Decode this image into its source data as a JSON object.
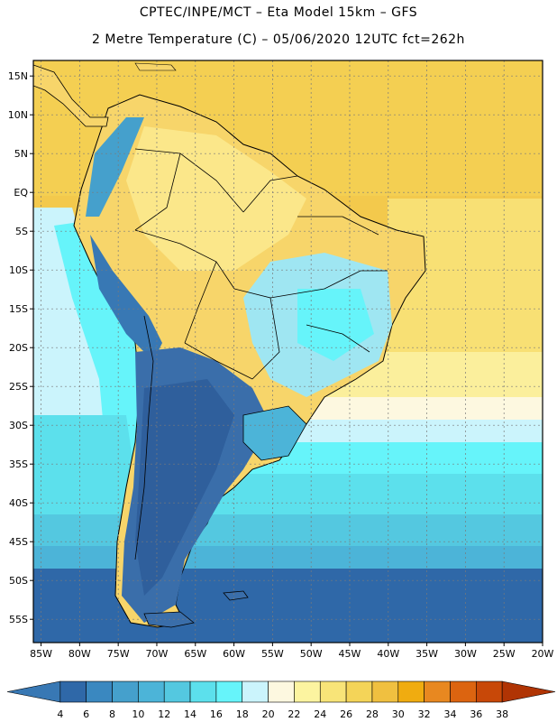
{
  "header": {
    "line1": "CPTEC/INPE/MCT –  Eta Model 15km – GFS",
    "line2": "2 Metre Temperature (C) – 05/06/2020 12UTC fct=262h"
  },
  "map": {
    "lat_ticks": [
      "15N",
      "10N",
      "5N",
      "EQ",
      "5S",
      "10S",
      "15S",
      "20S",
      "25S",
      "30S",
      "35S",
      "40S",
      "45S",
      "50S",
      "55S"
    ],
    "lon_ticks": [
      "85W",
      "80W",
      "75W",
      "70W",
      "65W",
      "60W",
      "55W",
      "50W",
      "45W",
      "40W",
      "35W",
      "30W",
      "25W",
      "20W"
    ],
    "lat_range": [
      17,
      -58
    ],
    "lon_range": [
      -86,
      -20
    ],
    "grid": true,
    "land_color": "#f7d56a",
    "ocean_color": "#f3c94c"
  },
  "colorbar": {
    "labels": [
      "4",
      "6",
      "8",
      "10",
      "12",
      "14",
      "16",
      "18",
      "20",
      "22",
      "24",
      "26",
      "28",
      "30",
      "32",
      "34",
      "36",
      "38"
    ],
    "colors": [
      "#3878b4",
      "#2f68a8",
      "#3a88c0",
      "#45a0cc",
      "#4cb4d8",
      "#54c8e0",
      "#5ce0ec",
      "#66f4fa",
      "#cbf4fc",
      "#fdf8e0",
      "#fcf4a0",
      "#f8e478",
      "#f4d458",
      "#f0c040",
      "#f0ac10",
      "#e88820",
      "#dc6410",
      "#c84808",
      "#b03404"
    ]
  }
}
